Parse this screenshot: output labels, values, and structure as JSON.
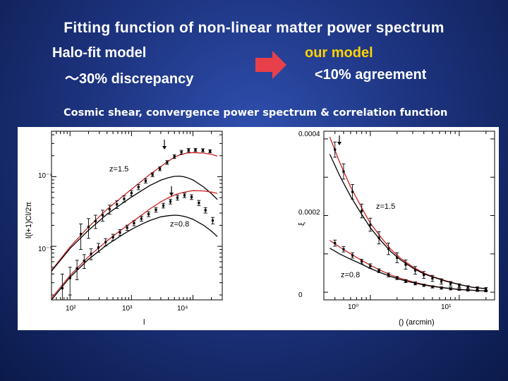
{
  "slide": {
    "title": "Fitting function of non-linear matter power spectrum",
    "left_model": "Halo-fit model",
    "left_discrepancy": "～30% discrepancy",
    "right_model": "our model",
    "right_agreement": "<10% agreement",
    "subtitle": "Cosmic shear, convergence power spectrum & correlation function",
    "arrow_icon": "right-arrow-icon",
    "colors": {
      "title_text": "#ffffff",
      "highlight": "#ffd200",
      "arrow": "#e8404a",
      "our_model_curve": "#cc2222",
      "halofit_curve": "#000000"
    }
  },
  "chart_data": [
    {
      "type": "line",
      "xscale": "log",
      "yscale": "log",
      "xlabel": "l",
      "ylabel": "l(l+1)Cl/2π",
      "xlim": [
        50,
        30000
      ],
      "ylim": [
        1.7e-06,
        0.00045
      ],
      "x_ticks": [
        "10²",
        "10³",
        "10⁴"
      ],
      "y_ticks": [
        "10⁻⁴",
        "10⁻⁵"
      ],
      "annotations": [
        "z=1.5",
        "z=0.8"
      ],
      "series": [
        {
          "color": "#cc2222",
          "x": [
            50,
            100,
            200,
            400,
            700,
            1000,
            1500,
            2000,
            3000,
            4000,
            5000,
            6000,
            7000,
            8000,
            10000,
            15000,
            20000,
            25000
          ],
          "y": [
            4.5e-06,
            9.8e-06,
            1.9e-05,
            3.4e-05,
            5.1e-05,
            6.6e-05,
            8.8e-05,
            0.000108,
            0.00014,
            0.000168,
            0.00019,
            0.000204,
            0.000212,
            0.000218,
            0.000222,
            0.000218,
            0.00021,
            0.000198
          ]
        },
        {
          "color": "#000000",
          "x": [
            50,
            100,
            200,
            400,
            700,
            1000,
            1500,
            2000,
            3000,
            4000,
            5000,
            6000,
            7000,
            8000,
            10000,
            15000,
            20000,
            25000
          ],
          "y": [
            4.4e-06,
            9.3e-06,
            1.7e-05,
            2.9e-05,
            4.1e-05,
            5.1e-05,
            6.4e-05,
            7.5e-05,
            8.9e-05,
            9.7e-05,
            0.000101,
            0.000102,
            0.0001,
            9.7e-05,
            9e-05,
            7.1e-05,
            5.7e-05,
            4.7e-05
          ]
        },
        {
          "color": "#cc2222",
          "x": [
            50,
            100,
            200,
            400,
            700,
            1000,
            1500,
            2000,
            3000,
            4000,
            5000,
            6000,
            7000,
            8000,
            10000,
            15000,
            20000,
            25000
          ],
          "y": [
            1.8e-06,
            3.8e-06,
            7.1e-06,
            1.2e-05,
            1.75e-05,
            2.2e-05,
            2.85e-05,
            3.45e-05,
            4.35e-05,
            5e-05,
            5.45e-05,
            5.75e-05,
            5.95e-05,
            6.1e-05,
            6.3e-05,
            6.25e-05,
            6e-05,
            5.75e-05
          ]
        },
        {
          "color": "#000000",
          "x": [
            50,
            100,
            200,
            400,
            700,
            1000,
            1500,
            2000,
            3000,
            4000,
            5000,
            6000,
            7000,
            8000,
            10000,
            15000,
            20000,
            25000
          ],
          "y": [
            1.7e-06,
            3.6e-06,
            6.5e-06,
            1.05e-05,
            1.45e-05,
            1.75e-05,
            2.1e-05,
            2.35e-05,
            2.65e-05,
            2.75e-05,
            2.8e-05,
            2.77e-05,
            2.7e-05,
            2.62e-05,
            2.45e-05,
            2e-05,
            1.65e-05,
            1.38e-05
          ]
        }
      ],
      "points": [
        {
          "x": [
            150,
            200,
            260,
            340,
            440,
            580,
            760,
            1000,
            1300,
            1700,
            2200,
            2900,
            3800,
            5000,
            6500,
            8500,
            11000,
            14500,
            19000
          ],
          "y": [
            1.5e-05,
            1.9e-05,
            2.3e-05,
            2.8e-05,
            3.4e-05,
            4e-05,
            4.8e-05,
            5.8e-05,
            7.1e-05,
            8.7e-05,
            0.000107,
            0.00013,
            0.00016,
            0.000195,
            0.000225,
            0.00024,
            0.000242,
            0.00024,
            0.000232
          ],
          "err": [
            6e-06,
            6e-06,
            5e-06,
            5e-06,
            5e-06,
            5e-06,
            5e-06,
            5e-06,
            6e-06,
            6e-06,
            7e-06,
            8e-06,
            1e-05,
            1.2e-05,
            1.4e-05,
            1.4e-05,
            1.3e-05,
            1.2e-05,
            1.2e-05
          ]
        },
        {
          "x": [
            75,
            100,
            130,
            170,
            220,
            290,
            380,
            500,
            650,
            850,
            1100,
            1450,
            1900,
            2500,
            3300,
            4300,
            5600,
            7300,
            9500,
            12500,
            16000,
            21000
          ],
          "y": [
            2.5e-06,
            3.5e-06,
            4.8e-06,
            6.2e-06,
            7.8e-06,
            9.6e-06,
            1.15e-05,
            1.35e-05,
            1.58e-05,
            1.85e-05,
            2.15e-05,
            2.5e-05,
            2.9e-05,
            3.35e-05,
            3.85e-05,
            4.4e-05,
            5e-05,
            5.4e-05,
            5.1e-05,
            4.2e-05,
            3.3e-05,
            2.35e-05
          ],
          "err": [
            1.5e-06,
            1.5e-06,
            1.5e-06,
            1.4e-06,
            1.4e-06,
            1.4e-06,
            1.4e-06,
            1.4e-06,
            1.5e-06,
            1.6e-06,
            1.8e-06,
            2e-06,
            2.3e-06,
            2.6e-06,
            3e-06,
            3.5e-06,
            4e-06,
            4e-06,
            4e-06,
            3.5e-06,
            3e-06,
            2.5e-06
          ]
        }
      ]
    },
    {
      "type": "line",
      "xscale": "log",
      "yscale": "linear",
      "xlabel": "() (arcmin)",
      "ylabel": "ξ",
      "xlim": [
        0.3,
        25
      ],
      "ylim": [
        -2e-05,
        0.00042
      ],
      "x_ticks": [
        "10⁰",
        "10¹"
      ],
      "y_ticks": [
        "0.0004",
        "0.0002",
        "0"
      ],
      "annotations": [
        "z=1.5",
        "z=0.8"
      ],
      "series": [
        {
          "color": "#cc2222",
          "x": [
            0.35,
            0.45,
            0.6,
            0.8,
            1.0,
            1.3,
            1.7,
            2.2,
            3,
            4,
            5,
            7,
            10,
            14,
            20
          ],
          "y": [
            0.000405,
            0.00034,
            0.000275,
            0.00022,
            0.00018,
            0.000145,
            0.000112,
            8.8e-05,
            6.6e-05,
            5e-05,
            4.1e-05,
            3e-05,
            2e-05,
            1.3e-05,
            9e-06
          ]
        },
        {
          "color": "#000000",
          "x": [
            0.35,
            0.45,
            0.6,
            0.8,
            1.0,
            1.3,
            1.7,
            2.2,
            3,
            4,
            5,
            7,
            10,
            14,
            20
          ],
          "y": [
            0.00036,
            0.000305,
            0.00025,
            0.000203,
            0.000168,
            0.000136,
            0.000106,
            8.4e-05,
            6.3e-05,
            4.8e-05,
            4e-05,
            2.9e-05,
            2e-05,
            1.3e-05,
            9e-06
          ]
        },
        {
          "color": "#cc2222",
          "x": [
            0.35,
            0.45,
            0.6,
            0.8,
            1.0,
            1.3,
            1.7,
            2.2,
            3,
            4,
            5,
            7,
            10,
            14,
            20
          ],
          "y": [
            0.000135,
            0.000118,
            0.0001,
            8.3e-05,
            7e-05,
            5.7e-05,
            4.5e-05,
            3.6e-05,
            2.7e-05,
            2e-05,
            1.6e-05,
            1.1e-05,
            7e-06,
            5e-06,
            3e-06
          ]
        },
        {
          "color": "#000000",
          "x": [
            0.35,
            0.45,
            0.6,
            0.8,
            1.0,
            1.3,
            1.7,
            2.2,
            3,
            4,
            5,
            7,
            10,
            14,
            20
          ],
          "y": [
            0.000115,
            0.0001,
            8.6e-05,
            7.3e-05,
            6.2e-05,
            5.1e-05,
            4.1e-05,
            3.3e-05,
            2.5e-05,
            1.9e-05,
            1.5e-05,
            1.1e-05,
            7e-06,
            5e-06,
            3e-06
          ]
        }
      ],
      "points": [
        {
          "x": [
            0.4,
            0.5,
            0.63,
            0.8,
            1.0,
            1.25,
            1.6,
            2.0,
            2.5,
            3.2,
            4,
            5,
            6.3,
            8,
            10,
            12.5,
            16,
            20
          ],
          "y": [
            0.000372,
            0.000315,
            0.000262,
            0.000212,
            0.000176,
            0.000142,
            0.000113,
            9e-05,
            7.2e-05,
            5.7e-05,
            4.5e-05,
            3.6e-05,
            2.8e-05,
            2.2e-05,
            1.7e-05,
            1.3e-05,
            1e-05,
            8e-06
          ],
          "err": [
            2e-05,
            2e-05,
            1.9e-05,
            1.8e-05,
            1.7e-05,
            1.6e-05,
            1.5e-05,
            1.3e-05,
            1.2e-05,
            1e-05,
            9e-06,
            8e-06,
            7e-06,
            6e-06,
            5e-06,
            4e-06,
            4e-06,
            4e-06
          ]
        },
        {
          "x": [
            0.4,
            0.5,
            0.63,
            0.8,
            1.0,
            1.25,
            1.6,
            2.0,
            2.5,
            3.2,
            4,
            5,
            6.3,
            8,
            10,
            12.5,
            16,
            20
          ],
          "y": [
            0.000128,
            0.000112,
            9.6e-05,
            8e-05,
            6.8e-05,
            5.6e-05,
            4.5e-05,
            3.7e-05,
            2.9e-05,
            2.3e-05,
            1.8e-05,
            1.4e-05,
            1.1e-05,
            9e-06,
            7e-06,
            5e-06,
            4e-06,
            3e-06
          ],
          "err": [
            8e-06,
            7e-06,
            7e-06,
            6e-06,
            6e-06,
            5e-06,
            5e-06,
            4e-06,
            4e-06,
            4e-06,
            3e-06,
            3e-06,
            3e-06,
            3e-06,
            2e-06,
            2e-06,
            2e-06,
            2e-06
          ]
        }
      ]
    }
  ]
}
